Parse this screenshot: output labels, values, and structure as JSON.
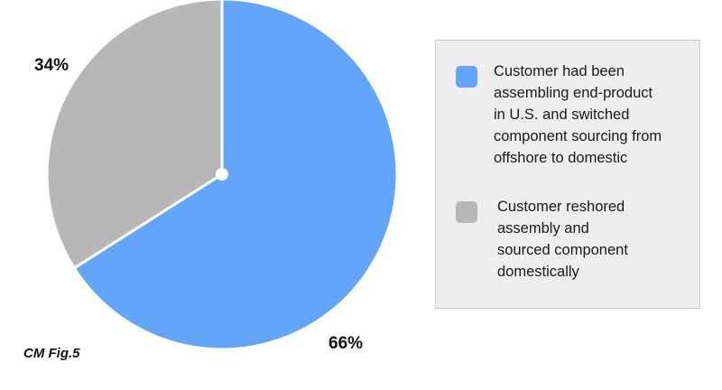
{
  "chart_data": {
    "type": "pie",
    "slices": [
      {
        "label": "Customer had been\nassembling end-product\nin U.S. and switched\ncomponent sourcing from\noffshore to domestic",
        "value": 66,
        "value_label": "66%",
        "color": "#63a5fb"
      },
      {
        "label": "Customer reshored\nassembly and\nsourced component\ndomestically",
        "value": 34,
        "value_label": "34%",
        "color": "#b7b7b7"
      }
    ],
    "legend_position": "right",
    "start_angle": "top",
    "direction": "clockwise"
  },
  "caption": "CM Fig.5"
}
